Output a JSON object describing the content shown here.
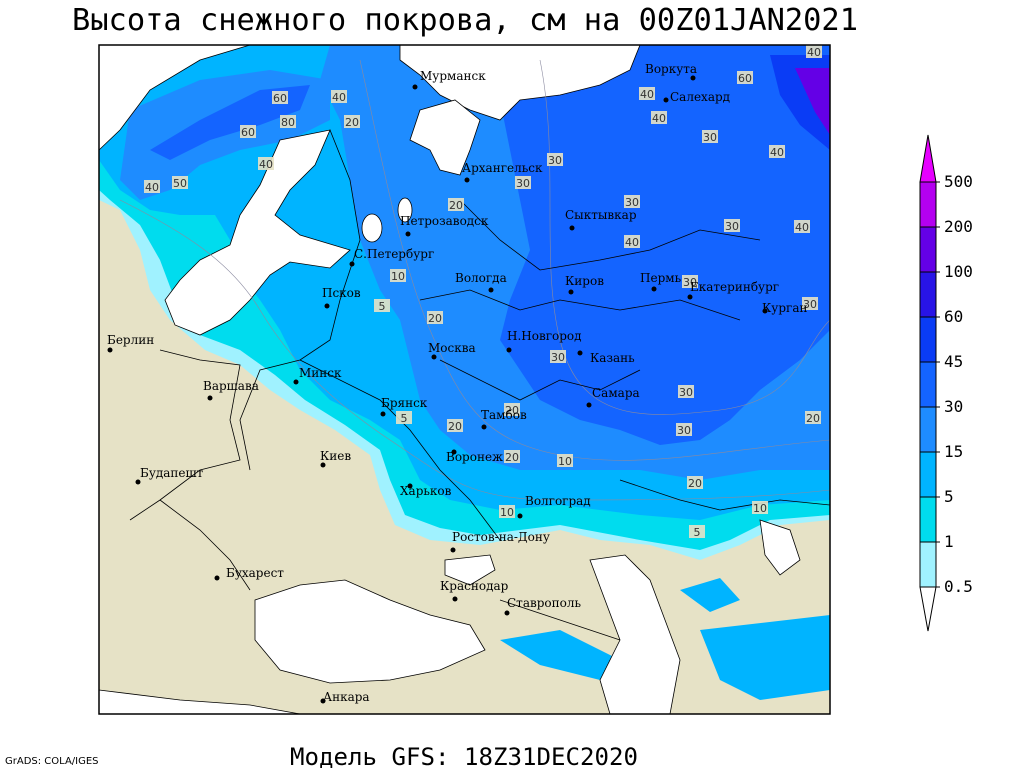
{
  "title": "Высота снежного покрова, см на 00Z01JAN2021",
  "subtitle": "Модель GFS: 18Z31DEC2020",
  "credit": "GrADS: COLA/IGES",
  "cities": [
    "Мурманск",
    "Воркута",
    "Салехард",
    "Архангельск",
    "Петрозаводск",
    "Сыктывкар",
    "С.Петербург",
    "Вологда",
    "Киров",
    "Пермь",
    "Екатеринбург",
    "Курган",
    "Псков",
    "Берлин",
    "Н.Новгород",
    "Москва",
    "Казань",
    "Минск",
    "Варшава",
    "Самара",
    "Брянск",
    "Тамбов",
    "Воронеж",
    "Киев",
    "Будапешт",
    "Харьков",
    "Волгоград",
    "Ростов-на-Дону",
    "Бухарест",
    "Краснодар",
    "Ставрополь",
    "Анкара"
  ],
  "contour_labels": [
    60,
    80,
    60,
    40,
    40,
    50,
    20,
    40,
    60,
    40,
    40,
    40,
    30,
    40,
    30,
    30,
    20,
    30,
    40,
    30,
    40,
    10,
    30,
    30,
    20,
    5,
    30,
    30,
    20,
    20,
    30,
    20,
    20,
    10,
    20,
    10,
    5,
    10,
    5
  ],
  "legend": {
    "levels": [
      0.5,
      1,
      5,
      15,
      30,
      45,
      60,
      100,
      200,
      500
    ],
    "colors": [
      "#ffffff",
      "#a0f2ff",
      "#00dcee",
      "#00b4ff",
      "#1e8cff",
      "#1464ff",
      "#0a3cf5",
      "#2814e6",
      "#6400e6",
      "#b400f0",
      "#e600ff"
    ]
  }
}
